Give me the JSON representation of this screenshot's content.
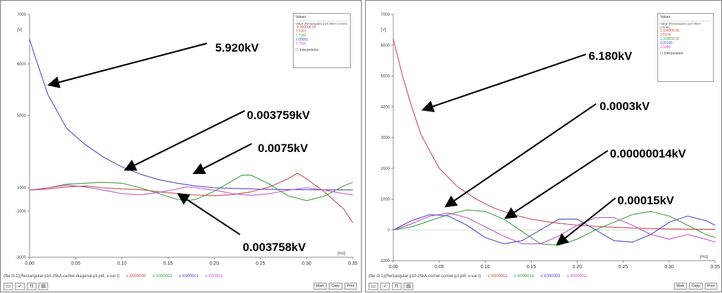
{
  "chart_data": [
    {
      "type": "line",
      "unit_y": "[V]",
      "unit_x": "[ms]",
      "x_ticks": [
        "0.00",
        "0.05",
        "0.10",
        "0.15",
        "0.20",
        "0.25",
        "0.30",
        "0.35"
      ],
      "y_ticks": [
        "7000",
        "6000",
        "5000",
        "1000",
        "-1000",
        "-3000"
      ],
      "ylim": [
        -3000,
        7000
      ],
      "xlim": [
        0,
        0.35
      ],
      "series": [
        {
          "color": "#4848c8",
          "x": [
            0,
            0.005,
            0.02,
            0.04,
            0.06,
            0.08,
            0.1,
            0.12,
            0.14,
            0.16,
            0.18,
            0.2,
            0.22,
            0.25,
            0.28,
            0.31,
            0.35
          ],
          "y": [
            6500,
            6200,
            5400,
            4300,
            3400,
            2700,
            2150,
            1750,
            1450,
            1250,
            1100,
            1000,
            950,
            880,
            850,
            830,
            820
          ]
        },
        {
          "color": "#c84848",
          "x": [
            0,
            0.02,
            0.04,
            0.06,
            0.08,
            0.1,
            0.12,
            0.14,
            0.16,
            0.18,
            0.2,
            0.22,
            0.24,
            0.26,
            0.28,
            0.29,
            0.3,
            0.32,
            0.34,
            0.35
          ],
          "y": [
            800,
            900,
            1050,
            1100,
            1000,
            900,
            850,
            650,
            500,
            380,
            320,
            420,
            650,
            1050,
            1500,
            1800,
            1500,
            600,
            -800,
            -1500
          ]
        },
        {
          "color": "#3aa03a",
          "x": [
            0,
            0.02,
            0.04,
            0.06,
            0.08,
            0.1,
            0.12,
            0.14,
            0.16,
            0.17,
            0.18,
            0.2,
            0.22,
            0.23,
            0.24,
            0.26,
            0.28,
            0.3,
            0.32,
            0.34,
            0.35
          ],
          "y": [
            800,
            1000,
            1200,
            1250,
            1300,
            1250,
            1000,
            500,
            0,
            -100,
            0,
            700,
            1400,
            1700,
            1700,
            1200,
            300,
            -100,
            300,
            1100,
            1300
          ]
        },
        {
          "color": "#c84fc8",
          "x": [
            0,
            0.02,
            0.04,
            0.06,
            0.08,
            0.1,
            0.12,
            0.14,
            0.16,
            0.17,
            0.18,
            0.2,
            0.22,
            0.24,
            0.26,
            0.28,
            0.3,
            0.32,
            0.34,
            0.35
          ],
          "y": [
            800,
            1000,
            1150,
            1050,
            800,
            500,
            400,
            600,
            900,
            1050,
            1000,
            800,
            500,
            350,
            500,
            800,
            1000,
            800,
            500,
            400
          ]
        }
      ],
      "annotations": [
        {
          "text": "5.920kV"
        },
        {
          "text": "0.003759kV"
        },
        {
          "text": "0.0075kV"
        },
        {
          "text": "0.003758kV"
        }
      ],
      "legend": {
        "title": "Values",
        "header": "Value (Rectangular p10-25kA-corner)",
        "entries": [
          "-2.000000 00",
          "7.7007",
          "7.7002",
          "2.05001",
          "7.7001"
        ],
        "checkbox_label": "Interpolation"
      },
      "caption": {
        "file": "(file i3-1)(Rectangular p10-25kA-center-diagonal-p1.pl4; x-var t)",
        "items": [
          "v:X000000",
          "v:X000002",
          "v:X000001",
          "v:X00001"
        ]
      }
    },
    {
      "type": "line",
      "unit_y": "[V]",
      "unit_x": "[ms]",
      "x_ticks": [
        "0.00",
        "0.05",
        "0.10",
        "0.15",
        "0.20",
        "0.25",
        "0.30",
        "0.35"
      ],
      "y_ticks": [
        "7000",
        "6000",
        "5000",
        "4000",
        "3000",
        "2000",
        "1000",
        "0",
        "-1000"
      ],
      "ylim": [
        -1000,
        7000
      ],
      "xlim": [
        0,
        0.35
      ],
      "series": [
        {
          "color": "#c84848",
          "x": [
            0,
            0.01,
            0.02,
            0.03,
            0.05,
            0.07,
            0.09,
            0.11,
            0.13,
            0.15,
            0.17,
            0.2,
            0.23,
            0.26,
            0.3,
            0.35
          ],
          "y": [
            6200,
            5000,
            4000,
            3100,
            2000,
            1400,
            1000,
            700,
            500,
            350,
            250,
            150,
            100,
            60,
            30,
            20
          ]
        },
        {
          "color": "#3aa03a",
          "x": [
            0,
            0.02,
            0.04,
            0.06,
            0.08,
            0.1,
            0.12,
            0.14,
            0.16,
            0.18,
            0.2,
            0.22,
            0.24,
            0.26,
            0.28,
            0.3,
            0.32,
            0.34,
            0.35
          ],
          "y": [
            0,
            100,
            300,
            500,
            650,
            600,
            350,
            -50,
            -450,
            -500,
            -300,
            0,
            250,
            500,
            600,
            450,
            150,
            -150,
            -250
          ]
        },
        {
          "color": "#4848c8",
          "x": [
            0,
            0.02,
            0.04,
            0.06,
            0.08,
            0.1,
            0.12,
            0.14,
            0.16,
            0.18,
            0.2,
            0.22,
            0.24,
            0.26,
            0.28,
            0.3,
            0.32,
            0.34,
            0.35
          ],
          "y": [
            0,
            300,
            500,
            450,
            150,
            -250,
            -450,
            -350,
            0,
            350,
            350,
            0,
            -350,
            -400,
            -150,
            250,
            450,
            300,
            150
          ]
        },
        {
          "color": "#c84fc8",
          "x": [
            0,
            0.02,
            0.04,
            0.06,
            0.08,
            0.1,
            0.12,
            0.14,
            0.16,
            0.18,
            0.2,
            0.22,
            0.24,
            0.26,
            0.28,
            0.3,
            0.32,
            0.34,
            0.35
          ],
          "y": [
            0,
            200,
            450,
            550,
            400,
            100,
            -200,
            -450,
            -450,
            -200,
            150,
            400,
            400,
            150,
            -150,
            -300,
            -150,
            -300,
            -400
          ]
        }
      ],
      "annotations": [
        {
          "text": "6.180kV"
        },
        {
          "text": "0.0003kV"
        },
        {
          "text": "0.00000014kV"
        },
        {
          "text": "0.00015kV"
        }
      ],
      "legend": {
        "title": "Values",
        "header": "Value (Rectangular p10-25kA-corner)",
        "entries": [
          "1.000000 00",
          "2.5974",
          "1.000000 00",
          "0.00195",
          "2.5980"
        ],
        "checkbox_label": "Interpolation"
      },
      "caption": {
        "file": "(file i3-1)(Rectangular p10-25kA-corner-corner-p2.pl4; x-var t)",
        "items": [
          "v:X000001",
          "v:X000014",
          "v:X000003",
          "v:X000002"
        ]
      }
    }
  ],
  "toolbar": {
    "buttons": [
      "Mark",
      "Copy",
      "Print"
    ]
  }
}
